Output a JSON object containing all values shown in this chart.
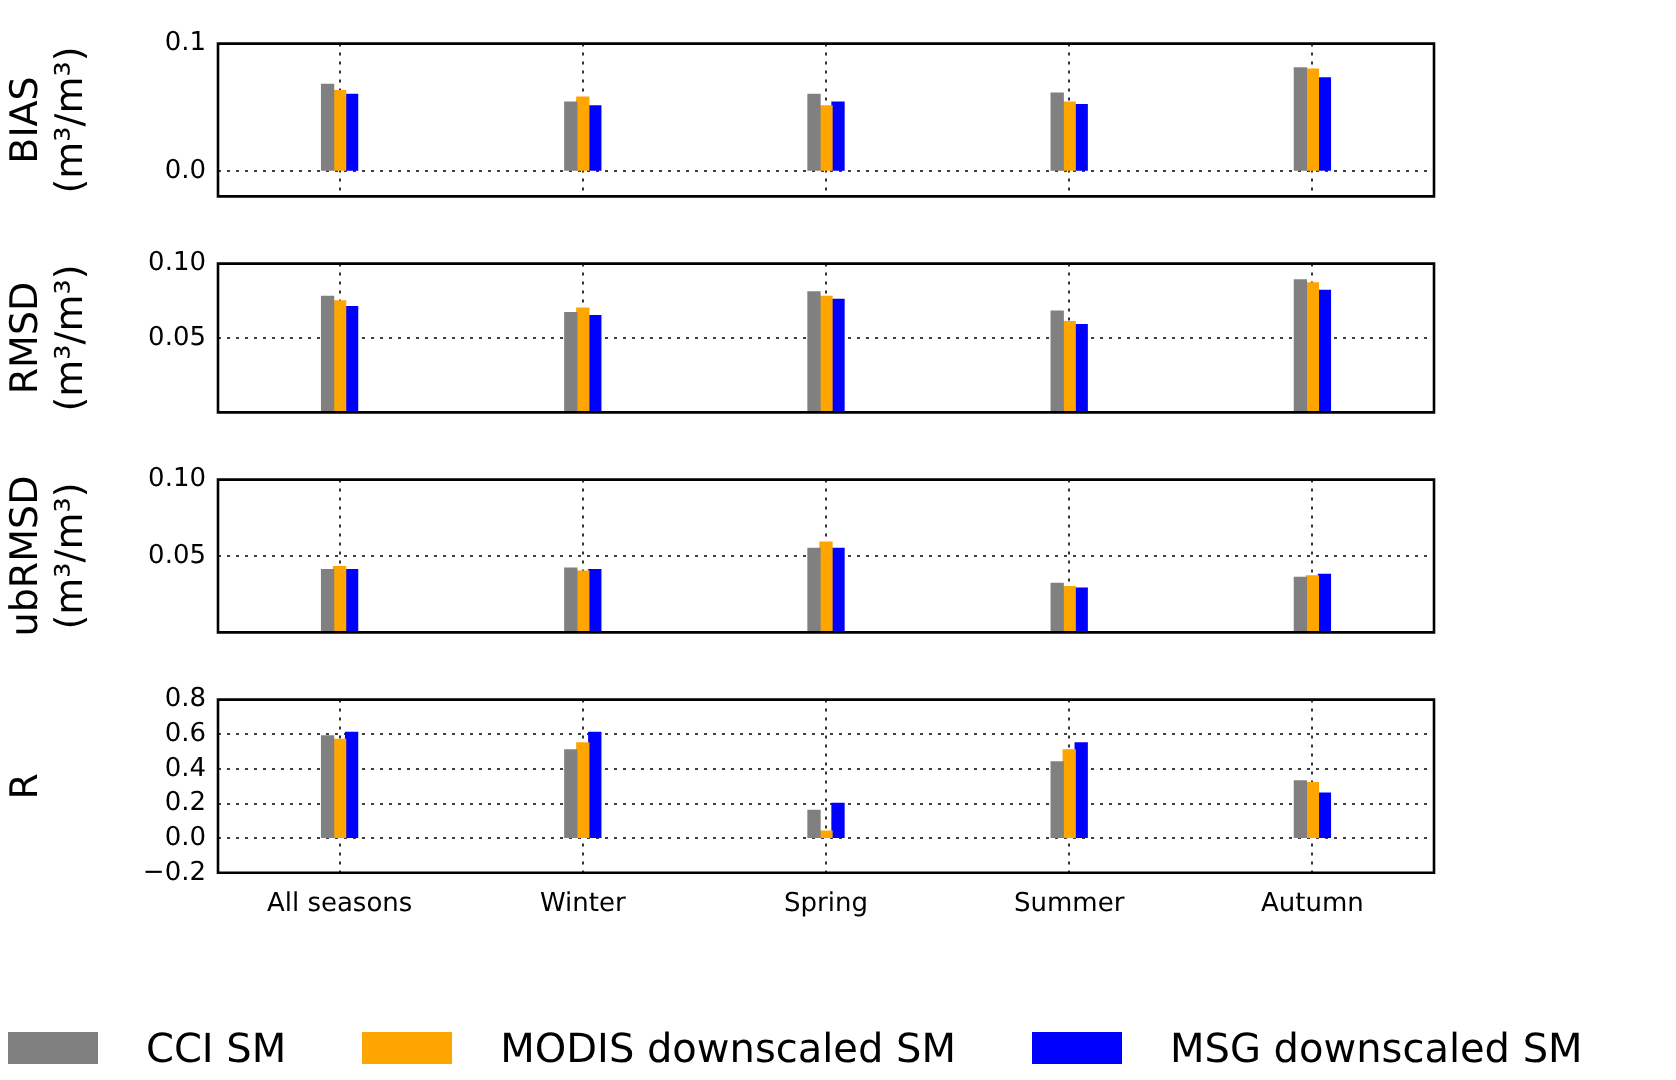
{
  "chart_data": [
    {
      "type": "bar",
      "categories": [
        null,
        null,
        null,
        null,
        null
      ],
      "ylabel": "BIAS\n(m³/m³)",
      "ylim": [
        -0.02,
        0.1
      ],
      "yticks": [
        {
          "value": 0,
          "label": "0.0"
        },
        0.1
      ],
      "grid": true,
      "tick_labels": "y",
      "series": [
        {
          "color": "#808080",
          "values": [
            0.068,
            0.054,
            0.06,
            0.061,
            0.081
          ]
        },
        {
          "color": "#ffa500",
          "values": [
            0.063,
            0.058,
            0.051,
            0.054,
            0.08
          ]
        },
        {
          "color": "#0000ff",
          "values": [
            0.06,
            0.051,
            0.054,
            0.052,
            0.073
          ]
        }
      ]
    },
    {
      "type": "bar",
      "categories": [
        null,
        null,
        null,
        null,
        null
      ],
      "ylabel": "RMSD\n(m³/m³)",
      "ylim": [
        0,
        0.1
      ],
      "yticks": [
        0.05,
        {
          "value": 0.1,
          "label": "0.10"
        }
      ],
      "grid": true,
      "tick_labels": "y",
      "series": [
        {
          "color": "#808080",
          "values": [
            0.078,
            0.067,
            0.081,
            0.068,
            0.089
          ]
        },
        {
          "color": "#ffa500",
          "values": [
            0.075,
            0.07,
            0.078,
            0.061,
            0.087
          ]
        },
        {
          "color": "#0000ff",
          "values": [
            0.071,
            0.065,
            0.076,
            0.059,
            0.082
          ]
        }
      ]
    },
    {
      "type": "bar",
      "categories": [
        null,
        null,
        null,
        null,
        null
      ],
      "ylabel": "ubRMSD\n(m³/m³)",
      "ylim": [
        0,
        0.1
      ],
      "yticks": [
        0.05,
        {
          "value": 0.1,
          "label": "0.10"
        }
      ],
      "grid": true,
      "tick_labels": "y",
      "series": [
        {
          "color": "#808080",
          "values": [
            0.041,
            0.042,
            0.055,
            0.032,
            0.036
          ]
        },
        {
          "color": "#ffa500",
          "values": [
            0.043,
            0.04,
            0.059,
            0.03,
            0.037
          ]
        },
        {
          "color": "#0000ff",
          "values": [
            0.041,
            0.041,
            0.055,
            0.029,
            0.038
          ]
        }
      ]
    },
    {
      "type": "bar",
      "categories": [
        "All seasons",
        "Winter",
        "Spring",
        "Summer",
        "Autumn"
      ],
      "ylabel": "R",
      "ylim": [
        -0.2,
        0.8
      ],
      "yticks": [
        {
          "value": -0.2,
          "label": "−0.2"
        },
        {
          "value": 0,
          "label": "0.0"
        },
        0.2,
        0.4,
        0.6,
        0.8
      ],
      "grid": true,
      "legend": "bottom",
      "series": [
        {
          "name": "CCI SM",
          "color": "#808080",
          "values": [
            0.59,
            0.51,
            0.16,
            0.44,
            0.33
          ]
        },
        {
          "name": "MODIS downscaled SM",
          "color": "#ffa500",
          "values": [
            0.57,
            0.55,
            0.04,
            0.51,
            0.32
          ]
        },
        {
          "name": "MSG downscaled SM",
          "color": "#0000ff",
          "values": [
            0.61,
            0.61,
            0.2,
            0.55,
            0.26
          ]
        }
      ]
    }
  ]
}
